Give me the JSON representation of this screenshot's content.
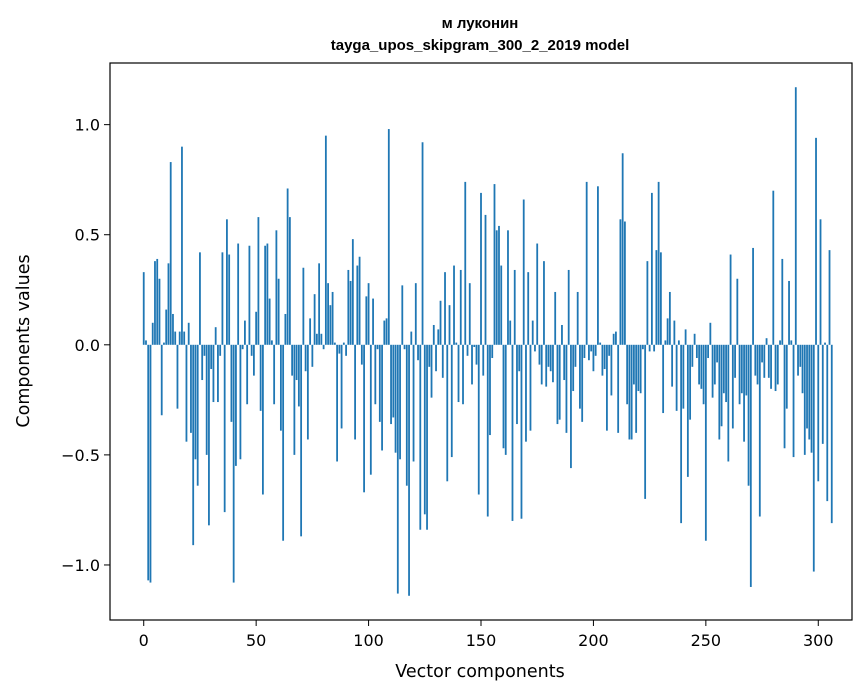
{
  "chart_data": {
    "type": "bar",
    "title": "м луконин",
    "subtitle": "tayga_upos_skipgram_300_2_2019 model",
    "xlabel": "Vector components",
    "ylabel": "Components values",
    "xlim": [
      -15,
      315
    ],
    "ylim": [
      -1.25,
      1.28
    ],
    "xticks": [
      0,
      50,
      100,
      150,
      200,
      250,
      300
    ],
    "xtick_labels": [
      "0",
      "50",
      "100",
      "150",
      "200",
      "250",
      "300"
    ],
    "yticks": [
      -1.0,
      -0.5,
      0.0,
      0.5,
      1.0
    ],
    "ytick_labels": [
      "−1.0",
      "−0.5",
      "0.0",
      "0.5",
      "1.0"
    ],
    "grid": false,
    "bar_color": "#1f77b4",
    "values": [
      0.33,
      0.02,
      -1.07,
      -1.08,
      0.1,
      0.38,
      0.39,
      0.3,
      -0.32,
      0.01,
      0.16,
      0.37,
      0.83,
      0.14,
      0.06,
      -0.29,
      0.06,
      0.9,
      0.06,
      -0.44,
      0.1,
      -0.4,
      -0.91,
      -0.52,
      -0.64,
      0.42,
      -0.16,
      -0.05,
      -0.5,
      -0.82,
      -0.11,
      -0.26,
      0.08,
      -0.26,
      -0.05,
      0.42,
      -0.76,
      0.57,
      0.41,
      -0.35,
      -1.08,
      -0.55,
      0.46,
      -0.52,
      -0.02,
      0.11,
      -0.27,
      0.45,
      -0.05,
      -0.14,
      0.15,
      0.58,
      -0.3,
      -0.68,
      0.45,
      0.46,
      0.21,
      0.02,
      -0.27,
      0.52,
      0.3,
      -0.39,
      -0.89,
      0.14,
      0.71,
      0.58,
      -0.14,
      -0.5,
      -0.16,
      -0.28,
      -0.87,
      0.35,
      -0.12,
      -0.43,
      0.12,
      -0.1,
      0.23,
      0.05,
      0.37,
      0.05,
      -0.02,
      0.95,
      0.28,
      0.18,
      0.24,
      0.01,
      -0.53,
      -0.04,
      -0.38,
      0.01,
      -0.05,
      0.34,
      0.29,
      0.48,
      -0.43,
      0.36,
      0.4,
      -0.09,
      -0.67,
      0.22,
      0.28,
      -0.59,
      0.21,
      -0.27,
      -0.02,
      -0.35,
      -0.48,
      0.11,
      0.12,
      0.98,
      -0.36,
      -0.33,
      -0.49,
      -1.13,
      -0.52,
      0.27,
      -0.02,
      -0.64,
      -1.14,
      0.06,
      -0.53,
      0.28,
      -0.07,
      -0.84,
      0.92,
      -0.77,
      -0.84,
      -0.1,
      -0.24,
      0.09,
      -0.12,
      0.07,
      0.2,
      -0.15,
      0.33,
      -0.62,
      0.18,
      -0.51,
      0.36,
      0.01,
      -0.26,
      0.34,
      -0.27,
      0.74,
      -0.05,
      0.28,
      -0.18,
      -0.01,
      -0.09,
      -0.68,
      0.69,
      -0.14,
      0.59,
      -0.78,
      -0.41,
      -0.06,
      0.73,
      0.52,
      0.54,
      0.36,
      -0.47,
      -0.5,
      0.52,
      0.11,
      -0.8,
      0.34,
      -0.36,
      -0.12,
      -0.79,
      0.66,
      -0.44,
      0.33,
      -0.39,
      0.11,
      -0.03,
      0.46,
      -0.09,
      -0.18,
      0.38,
      -0.19,
      -0.1,
      -0.12,
      -0.17,
      0.24,
      -0.36,
      -0.34,
      0.09,
      -0.16,
      -0.4,
      0.34,
      -0.56,
      -0.21,
      -0.1,
      0.24,
      -0.29,
      -0.35,
      -0.06,
      0.74,
      -0.07,
      -0.03,
      -0.12,
      -0.05,
      0.72,
      0.01,
      -0.14,
      -0.11,
      -0.39,
      -0.05,
      -0.23,
      0.05,
      0.06,
      -0.4,
      0.57,
      0.87,
      0.56,
      -0.27,
      -0.43,
      -0.43,
      -0.18,
      -0.4,
      -0.21,
      -0.22,
      -0.02,
      -0.7,
      0.38,
      -0.03,
      0.69,
      -0.03,
      0.43,
      0.74,
      0.42,
      -0.31,
      0.02,
      0.12,
      0.24,
      -0.19,
      0.11,
      -0.3,
      0.02,
      -0.81,
      -0.29,
      0.07,
      -0.6,
      -0.34,
      -0.1,
      0.05,
      -0.06,
      -0.18,
      -0.2,
      -0.27,
      -0.89,
      -0.06,
      0.1,
      -0.24,
      -0.18,
      -0.08,
      -0.43,
      -0.37,
      -0.22,
      -0.26,
      -0.53,
      0.41,
      -0.38,
      -0.15,
      0.3,
      -0.27,
      -0.22,
      -0.44,
      -0.23,
      -0.64,
      -1.1,
      0.44,
      -0.14,
      -0.18,
      -0.78,
      -0.08,
      -0.15,
      0.03,
      -0.15,
      -0.2,
      0.7,
      -0.21,
      -0.18,
      0.02,
      0.39,
      -0.47,
      -0.29,
      0.29,
      0.02,
      -0.51,
      1.17,
      -0.14,
      -0.1,
      -0.22,
      -0.5,
      -0.38,
      -0.43,
      -0.49,
      -1.03,
      0.94,
      -0.62,
      0.57,
      -0.45,
      0.01,
      -0.71,
      0.43,
      -0.81
    ]
  }
}
